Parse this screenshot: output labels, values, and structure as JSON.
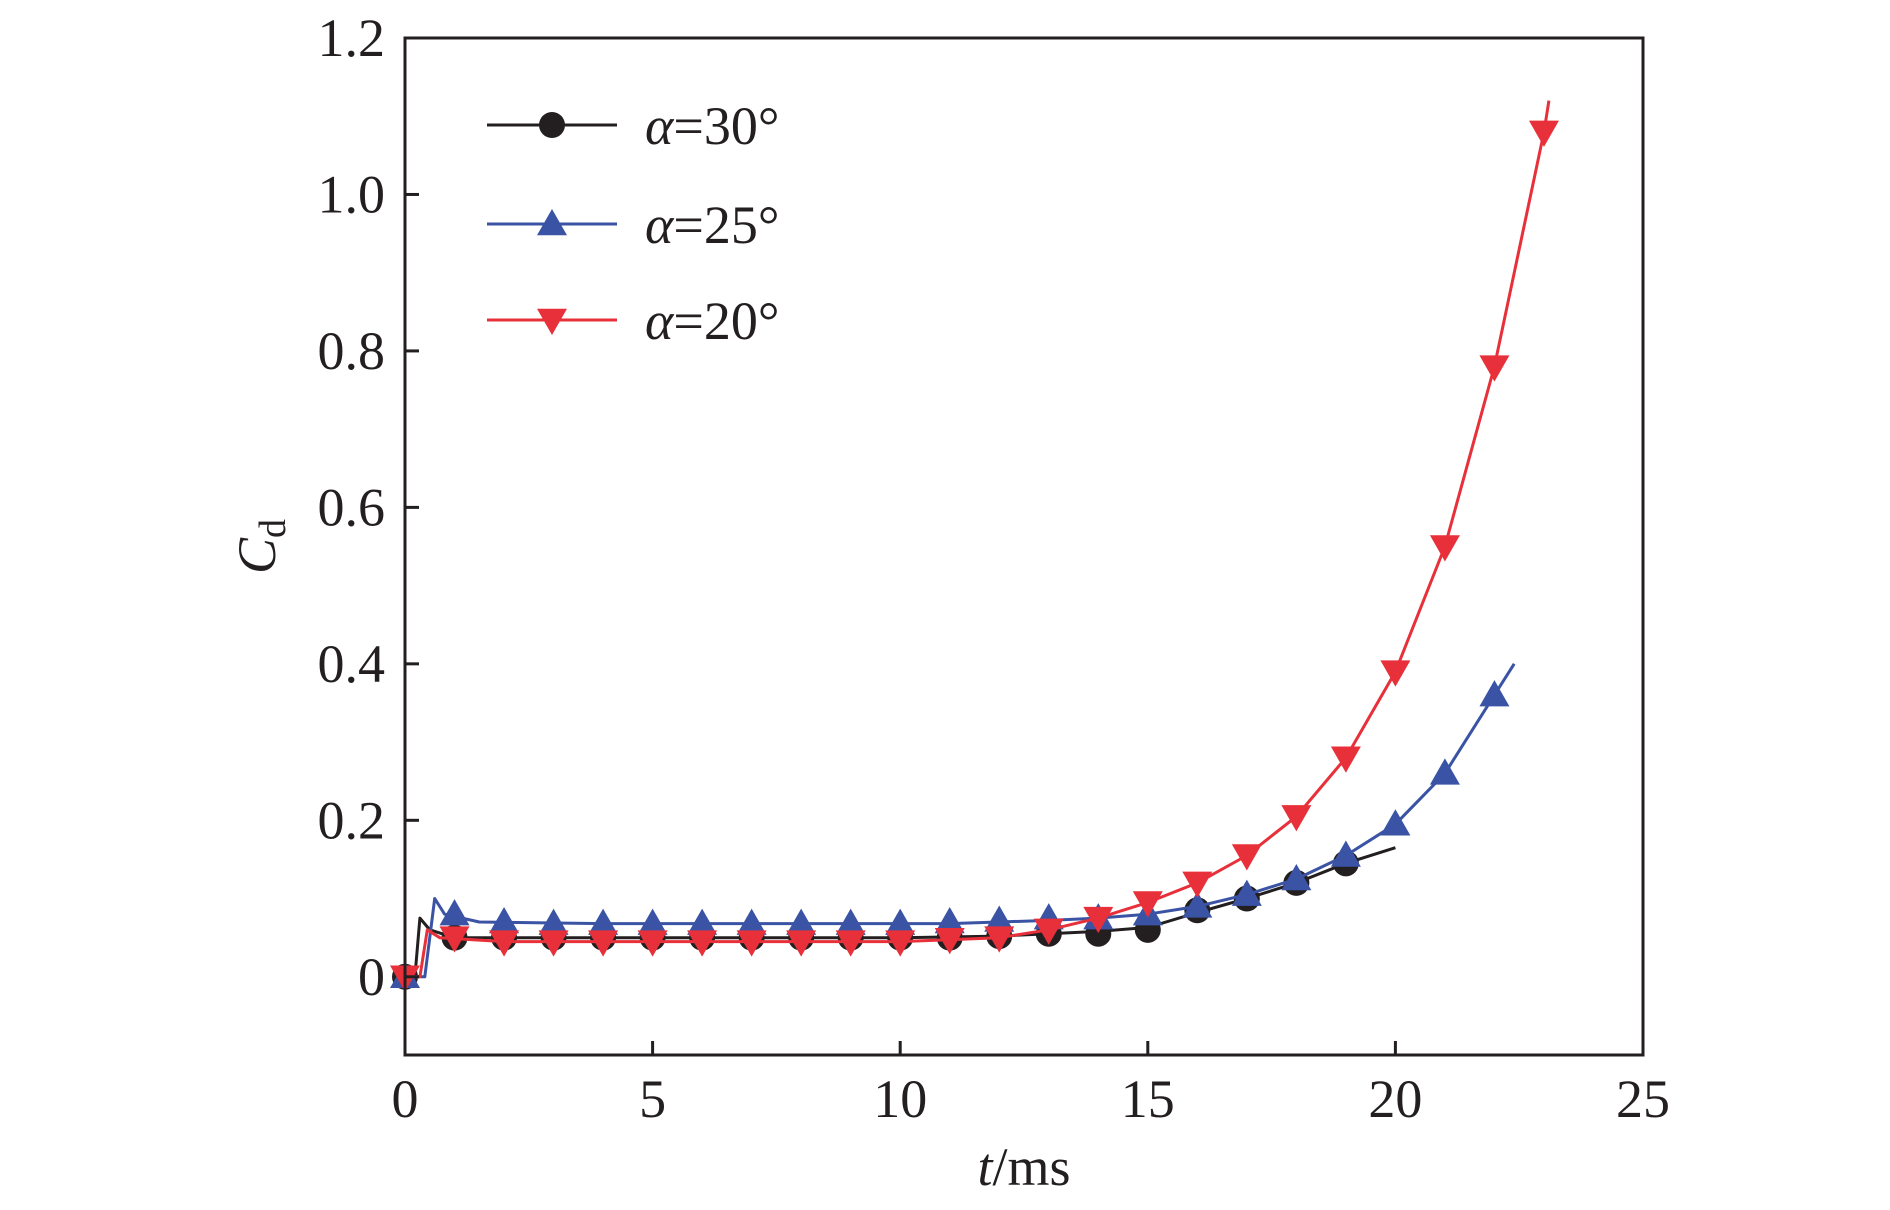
{
  "chart_data": {
    "type": "line",
    "title": "",
    "xlabel": {
      "italic": "t",
      "rest": "/ms"
    },
    "ylabel": {
      "italic": "C",
      "sub": "d"
    },
    "xlim": [
      0,
      25
    ],
    "ylim": [
      -0.1,
      1.2
    ],
    "x_ticks": [
      0,
      5,
      10,
      15,
      20,
      25
    ],
    "x_tick_labels": [
      "0",
      "5",
      "10",
      "15",
      "20",
      "25"
    ],
    "y_ticks": [
      0,
      0.2,
      0.4,
      0.6,
      0.8,
      1.0,
      1.2
    ],
    "y_tick_labels": [
      "0",
      "0.2",
      "0.4",
      "0.6",
      "0.8",
      "1.0",
      "1.2"
    ],
    "grid": false,
    "legend_position": "top-left",
    "series": [
      {
        "name": "α=30°",
        "legend": {
          "symbol": "α",
          "rest": "=30°"
        },
        "color": "#231f20",
        "marker": "circle",
        "curve": [
          [
            0,
            0
          ],
          [
            0.2,
            0
          ],
          [
            0.3,
            0.075
          ],
          [
            0.5,
            0.06
          ],
          [
            1,
            0.05
          ],
          [
            3,
            0.05
          ],
          [
            6,
            0.05
          ],
          [
            10,
            0.05
          ],
          [
            12,
            0.052
          ],
          [
            13,
            0.055
          ],
          [
            14,
            0.058
          ],
          [
            15,
            0.063
          ],
          [
            16,
            0.082
          ],
          [
            17,
            0.1
          ],
          [
            18,
            0.12
          ],
          [
            19,
            0.145
          ],
          [
            20,
            0.165
          ]
        ],
        "markers": [
          [
            0,
            0
          ],
          [
            1,
            0.05
          ],
          [
            2,
            0.05
          ],
          [
            3,
            0.05
          ],
          [
            4,
            0.05
          ],
          [
            5,
            0.05
          ],
          [
            6,
            0.05
          ],
          [
            7,
            0.05
          ],
          [
            8,
            0.05
          ],
          [
            9,
            0.05
          ],
          [
            10,
            0.05
          ],
          [
            11,
            0.05
          ],
          [
            12,
            0.052
          ],
          [
            13,
            0.055
          ],
          [
            14,
            0.055
          ],
          [
            15,
            0.06
          ],
          [
            16,
            0.085
          ],
          [
            17,
            0.1
          ],
          [
            18,
            0.12
          ],
          [
            19,
            0.145
          ]
        ]
      },
      {
        "name": "α=25°",
        "legend": {
          "symbol": "α",
          "rest": "=25°"
        },
        "color": "#3a53a4",
        "marker": "triangle-up",
        "curve": [
          [
            0,
            0
          ],
          [
            0.4,
            0
          ],
          [
            0.6,
            0.1
          ],
          [
            0.8,
            0.08
          ],
          [
            1.5,
            0.07
          ],
          [
            4,
            0.068
          ],
          [
            8,
            0.068
          ],
          [
            11,
            0.068
          ],
          [
            13,
            0.072
          ],
          [
            14,
            0.075
          ],
          [
            15,
            0.08
          ],
          [
            16,
            0.09
          ],
          [
            17,
            0.105
          ],
          [
            18,
            0.125
          ],
          [
            19,
            0.155
          ],
          [
            20,
            0.195
          ],
          [
            21,
            0.26
          ],
          [
            22,
            0.36
          ],
          [
            22.4,
            0.4
          ]
        ],
        "markers": [
          [
            0,
            0
          ],
          [
            1,
            0.08
          ],
          [
            2,
            0.07
          ],
          [
            3,
            0.068
          ],
          [
            4,
            0.068
          ],
          [
            5,
            0.068
          ],
          [
            6,
            0.068
          ],
          [
            7,
            0.068
          ],
          [
            8,
            0.068
          ],
          [
            9,
            0.068
          ],
          [
            10,
            0.068
          ],
          [
            11,
            0.07
          ],
          [
            12,
            0.072
          ],
          [
            13,
            0.075
          ],
          [
            14,
            0.075
          ],
          [
            15,
            0.08
          ],
          [
            16,
            0.09
          ],
          [
            17,
            0.105
          ],
          [
            18,
            0.125
          ],
          [
            19,
            0.155
          ],
          [
            20,
            0.195
          ],
          [
            21,
            0.26
          ],
          [
            22,
            0.36
          ]
        ]
      },
      {
        "name": "α=20°",
        "legend": {
          "symbol": "α",
          "rest": "=20°"
        },
        "color": "#e8303a",
        "marker": "triangle-down",
        "curve": [
          [
            0,
            0
          ],
          [
            0.3,
            0
          ],
          [
            0.45,
            0.06
          ],
          [
            0.7,
            0.05
          ],
          [
            2,
            0.045
          ],
          [
            6,
            0.045
          ],
          [
            10,
            0.045
          ],
          [
            12,
            0.05
          ],
          [
            13,
            0.06
          ],
          [
            14,
            0.075
          ],
          [
            15,
            0.095
          ],
          [
            16,
            0.12
          ],
          [
            17,
            0.155
          ],
          [
            18,
            0.205
          ],
          [
            19,
            0.28
          ],
          [
            20,
            0.39
          ],
          [
            21,
            0.55
          ],
          [
            22,
            0.78
          ],
          [
            23,
            1.08
          ],
          [
            23.1,
            1.12
          ]
        ],
        "markers": [
          [
            0,
            0
          ],
          [
            1,
            0.05
          ],
          [
            2,
            0.045
          ],
          [
            3,
            0.045
          ],
          [
            4,
            0.045
          ],
          [
            5,
            0.045
          ],
          [
            6,
            0.045
          ],
          [
            7,
            0.045
          ],
          [
            8,
            0.045
          ],
          [
            9,
            0.045
          ],
          [
            10,
            0.045
          ],
          [
            11,
            0.048
          ],
          [
            12,
            0.05
          ],
          [
            13,
            0.06
          ],
          [
            14,
            0.075
          ],
          [
            15,
            0.095
          ],
          [
            16,
            0.12
          ],
          [
            17,
            0.155
          ],
          [
            18,
            0.205
          ],
          [
            19,
            0.28
          ],
          [
            20,
            0.39
          ],
          [
            21,
            0.55
          ],
          [
            22,
            0.78
          ],
          [
            23,
            1.08
          ]
        ]
      }
    ]
  }
}
